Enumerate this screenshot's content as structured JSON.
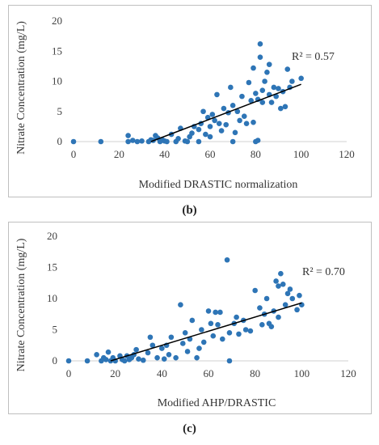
{
  "captions": {
    "b": "(b)",
    "c": "(c)"
  },
  "chart_data": [
    {
      "type": "scatter",
      "title": "",
      "xlabel": "Modified DRASTIC normalization",
      "ylabel": "Nitrate Concentration (mg/L)",
      "xlim": [
        0,
        120
      ],
      "ylim": [
        0,
        20
      ],
      "x_ticks": [
        0,
        20,
        40,
        60,
        80,
        100,
        120
      ],
      "y_ticks": [
        0,
        5,
        10,
        15,
        20
      ],
      "annotation": "R² = 0.57",
      "grid": false,
      "marker_color": "#2e75b6",
      "trendline_color": "#000000",
      "trendline": {
        "x": [
          34,
          100
        ],
        "y": [
          0,
          9.5
        ]
      },
      "points": [
        [
          0,
          0
        ],
        [
          12,
          0
        ],
        [
          24,
          0
        ],
        [
          24,
          1.0
        ],
        [
          26,
          0.2
        ],
        [
          28,
          0
        ],
        [
          30,
          0.1
        ],
        [
          33,
          0
        ],
        [
          34,
          0.3
        ],
        [
          35,
          0.2
        ],
        [
          36,
          1.0
        ],
        [
          37,
          0.6
        ],
        [
          38,
          0
        ],
        [
          39,
          0.3
        ],
        [
          40,
          0.1
        ],
        [
          41,
          0
        ],
        [
          43,
          1.2
        ],
        [
          45,
          0
        ],
        [
          46,
          0.5
        ],
        [
          47,
          2.2
        ],
        [
          49,
          0.1
        ],
        [
          50,
          0
        ],
        [
          51,
          0.8
        ],
        [
          52,
          1.4
        ],
        [
          53,
          2.5
        ],
        [
          55,
          0
        ],
        [
          55,
          2.0
        ],
        [
          56,
          3.0
        ],
        [
          57,
          5.0
        ],
        [
          58,
          1.2
        ],
        [
          59,
          4.0
        ],
        [
          60,
          0.8
        ],
        [
          60,
          2.5
        ],
        [
          61,
          4.5
        ],
        [
          62,
          3.5
        ],
        [
          63,
          7.8
        ],
        [
          64,
          3.0
        ],
        [
          65,
          1.8
        ],
        [
          66,
          5.5
        ],
        [
          67,
          2.8
        ],
        [
          68,
          4.8
        ],
        [
          69,
          9.0
        ],
        [
          70,
          0
        ],
        [
          70,
          6.0
        ],
        [
          71,
          1.5
        ],
        [
          72,
          5.0
        ],
        [
          73,
          3.5
        ],
        [
          74,
          7.5
        ],
        [
          75,
          4.2
        ],
        [
          76,
          3.0
        ],
        [
          77,
          9.8
        ],
        [
          78,
          6.8
        ],
        [
          79,
          12.2
        ],
        [
          79,
          3.2
        ],
        [
          80,
          8.0
        ],
        [
          80,
          0
        ],
        [
          81,
          7.0
        ],
        [
          81,
          0.2
        ],
        [
          82,
          14.0
        ],
        [
          82,
          16.2
        ],
        [
          83,
          8.5
        ],
        [
          83,
          6.5
        ],
        [
          84,
          10.0
        ],
        [
          85,
          11.5
        ],
        [
          86,
          7.8
        ],
        [
          86,
          12.8
        ],
        [
          87,
          6.5
        ],
        [
          88,
          9.0
        ],
        [
          89,
          7.5
        ],
        [
          90,
          8.8
        ],
        [
          91,
          5.5
        ],
        [
          92,
          8.3
        ],
        [
          93,
          5.8
        ],
        [
          94,
          12.0
        ],
        [
          95,
          9.0
        ],
        [
          96,
          10.0
        ],
        [
          100,
          10.5
        ]
      ]
    },
    {
      "type": "scatter",
      "title": "",
      "xlabel": "Modified AHP/DRASTIC",
      "ylabel": "Nitrate Concentration (mg/L)",
      "xlim": [
        0,
        120
      ],
      "ylim": [
        0,
        20
      ],
      "x_ticks": [
        0,
        20,
        40,
        60,
        80,
        100,
        120
      ],
      "y_ticks": [
        0,
        5,
        10,
        15,
        20
      ],
      "annotation": "R² = 0.70",
      "grid": false,
      "marker_color": "#2e75b6",
      "trendline_color": "#000000",
      "trendline": {
        "x": [
          18,
          100
        ],
        "y": [
          0,
          9.3
        ]
      },
      "points": [
        [
          0,
          0
        ],
        [
          8,
          0
        ],
        [
          12,
          1.0
        ],
        [
          14,
          0
        ],
        [
          15,
          0.5
        ],
        [
          16,
          0.2
        ],
        [
          17,
          1.4
        ],
        [
          18,
          0
        ],
        [
          19,
          0.5
        ],
        [
          20,
          0
        ],
        [
          22,
          0.8
        ],
        [
          23,
          0.2
        ],
        [
          24,
          0
        ],
        [
          25,
          0.8
        ],
        [
          26,
          0.2
        ],
        [
          27,
          0.5
        ],
        [
          28,
          1.0
        ],
        [
          29,
          1.8
        ],
        [
          30,
          0.3
        ],
        [
          32,
          0.1
        ],
        [
          34,
          1.3
        ],
        [
          35,
          3.8
        ],
        [
          36,
          2.5
        ],
        [
          38,
          0.5
        ],
        [
          40,
          2.0
        ],
        [
          41,
          0.3
        ],
        [
          42,
          2.5
        ],
        [
          43,
          1.0
        ],
        [
          44,
          3.8
        ],
        [
          46,
          0.5
        ],
        [
          48,
          9.0
        ],
        [
          49,
          2.8
        ],
        [
          50,
          4.5
        ],
        [
          51,
          1.5
        ],
        [
          52,
          3.5
        ],
        [
          53,
          6.5
        ],
        [
          55,
          0.5
        ],
        [
          56,
          2.0
        ],
        [
          57,
          5.0
        ],
        [
          58,
          3.0
        ],
        [
          60,
          8.0
        ],
        [
          61,
          6.0
        ],
        [
          62,
          4.0
        ],
        [
          63,
          7.8
        ],
        [
          64,
          5.8
        ],
        [
          65,
          7.8
        ],
        [
          66,
          3.5
        ],
        [
          68,
          16.2
        ],
        [
          69,
          4.5
        ],
        [
          69,
          0
        ],
        [
          71,
          6.0
        ],
        [
          72,
          7.0
        ],
        [
          73,
          4.3
        ],
        [
          75,
          6.5
        ],
        [
          76,
          5.0
        ],
        [
          78,
          4.8
        ],
        [
          80,
          11.3
        ],
        [
          82,
          8.5
        ],
        [
          83,
          5.8
        ],
        [
          84,
          7.5
        ],
        [
          85,
          10.0
        ],
        [
          86,
          6.0
        ],
        [
          87,
          5.5
        ],
        [
          88,
          8.0
        ],
        [
          89,
          12.8
        ],
        [
          90,
          7.0
        ],
        [
          90,
          12.0
        ],
        [
          91,
          14.0
        ],
        [
          92,
          12.3
        ],
        [
          93,
          9.0
        ],
        [
          94,
          10.8
        ],
        [
          95,
          11.5
        ],
        [
          96,
          10.0
        ],
        [
          98,
          8.2
        ],
        [
          99,
          10.5
        ],
        [
          100,
          9.0
        ]
      ]
    }
  ]
}
